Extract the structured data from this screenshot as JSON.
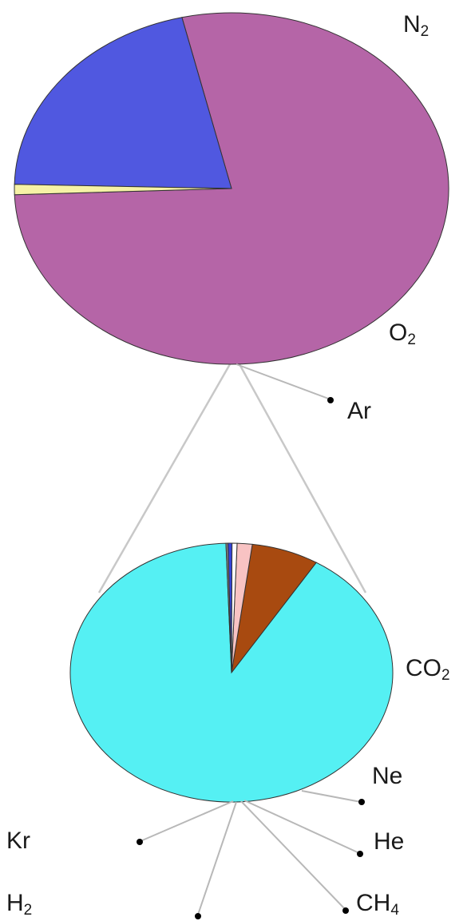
{
  "chart_data": [
    {
      "type": "pie",
      "series": [
        {
          "label": "N2",
          "value": 78.08,
          "color": "#b565a7"
        },
        {
          "label": "O2",
          "value": 20.95,
          "color": "#5058e0"
        },
        {
          "label": "Ar",
          "value": 0.93,
          "color": "#f6f2a6"
        }
      ]
    },
    {
      "type": "pie",
      "series": [
        {
          "label": "CO2",
          "value": 90.0,
          "color": "#55f0f3"
        },
        {
          "label": "Ne",
          "value": 6.7,
          "color": "#a84a10"
        },
        {
          "label": "He",
          "value": 1.5,
          "color": "#f8c3c3"
        },
        {
          "label": "CH4",
          "value": 0.5,
          "color": "#ffffff"
        },
        {
          "label": "Kr",
          "value": 0.4,
          "color": "#3545d8"
        },
        {
          "label": "H2",
          "value": 0.2,
          "color": "#8a8a8a"
        }
      ]
    }
  ]
}
